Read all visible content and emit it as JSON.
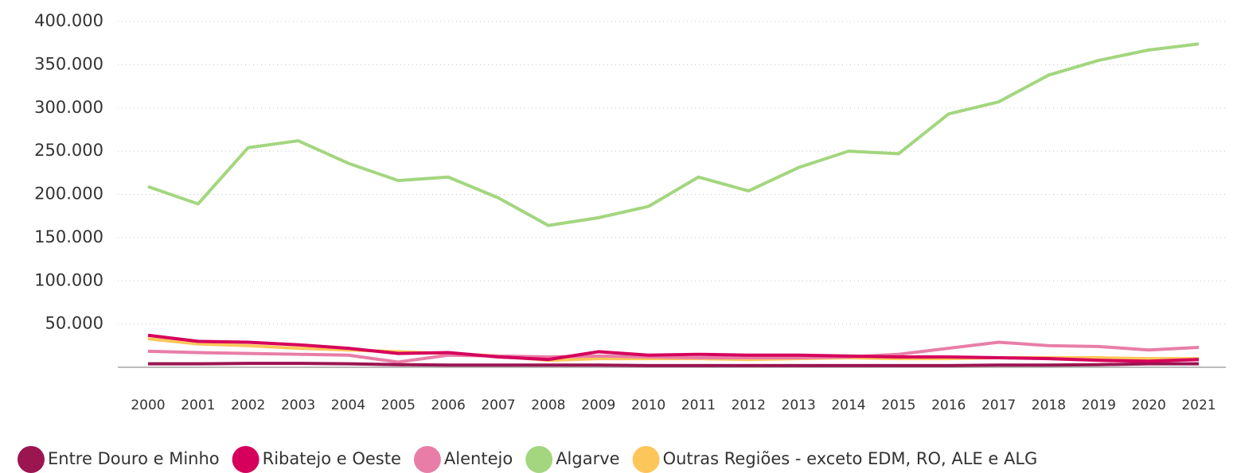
{
  "chart_data": {
    "type": "line",
    "categories": [
      "2000",
      "2001",
      "2002",
      "2003",
      "2004",
      "2005",
      "2006",
      "2007",
      "2008",
      "2009",
      "2010",
      "2011",
      "2012",
      "2013",
      "2014",
      "2015",
      "2016",
      "2017",
      "2018",
      "2019",
      "2020",
      "2021"
    ],
    "series": [
      {
        "name": "Entre Douro e Minho",
        "color": "#9b1550",
        "values": [
          4000,
          4000,
          4500,
          4500,
          4000,
          3000,
          2500,
          2500,
          2500,
          2500,
          2000,
          2000,
          2000,
          2000,
          2000,
          2000,
          2000,
          2500,
          2500,
          3000,
          4000,
          4000
        ]
      },
      {
        "name": "Ribatejo e Oeste",
        "color": "#d6005c",
        "values": [
          37000,
          30000,
          29000,
          26000,
          22000,
          16000,
          17000,
          12000,
          9000,
          18000,
          14000,
          15000,
          14000,
          14000,
          13000,
          12000,
          12000,
          11000,
          10000,
          8000,
          7000,
          9000
        ]
      },
      {
        "name": "Alentejo",
        "color": "#e87ea8",
        "values": [
          18500,
          17000,
          16000,
          15000,
          14000,
          6000,
          14000,
          13000,
          12000,
          13000,
          12000,
          11000,
          11000,
          11000,
          12000,
          15000,
          22000,
          29000,
          25000,
          24000,
          20000,
          23000
        ]
      },
      {
        "name": "Algarve",
        "color": "#a3d67f",
        "values": [
          209000,
          189000,
          254000,
          262000,
          236000,
          216000,
          220000,
          196000,
          164000,
          173000,
          186000,
          220000,
          204000,
          231000,
          250000,
          247000,
          293000,
          307000,
          338000,
          355000,
          367000,
          374000
        ]
      },
      {
        "name": "Outras Regiões - exceto EDM, RO, ALE e ALG",
        "color": "#fdc65a",
        "values": [
          33000,
          27000,
          25000,
          22000,
          20000,
          18000,
          16000,
          13000,
          8000,
          10000,
          10000,
          10000,
          9000,
          10000,
          11000,
          10000,
          10000,
          11000,
          11000,
          11000,
          10000,
          10000
        ]
      }
    ],
    "ylim": [
      0,
      400000
    ],
    "yticks": [
      {
        "value": 50000,
        "label": "50.000"
      },
      {
        "value": 100000,
        "label": "100.000"
      },
      {
        "value": 150000,
        "label": "150.000"
      },
      {
        "value": 200000,
        "label": "200.000"
      },
      {
        "value": 250000,
        "label": "250.000"
      },
      {
        "value": 300000,
        "label": "300.000"
      },
      {
        "value": 350000,
        "label": "350.000"
      },
      {
        "value": 400000,
        "label": "400.000"
      }
    ],
    "grid": true,
    "legend": "bottom"
  }
}
